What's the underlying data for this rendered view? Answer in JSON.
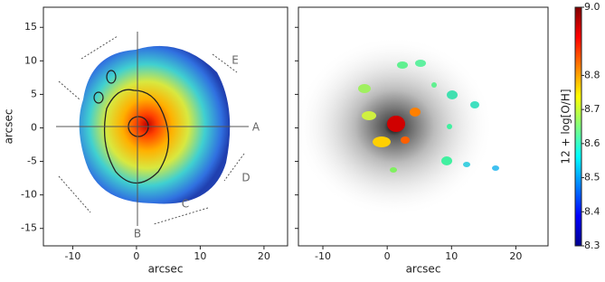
{
  "chart_data": [
    {
      "type": "map",
      "xlabel": "arcsec",
      "ylabel": "arcsec",
      "xlim": [
        -14.6,
        23.7
      ],
      "ylim": [
        -17.6,
        18
      ],
      "xticks": [
        -10,
        0,
        10,
        20
      ],
      "yticks": [
        -15,
        -10,
        -5,
        0,
        5,
        10,
        15
      ],
      "annotations": [
        "A",
        "B",
        "C",
        "D",
        "E"
      ]
    },
    {
      "type": "map",
      "xlabel": "arcsec",
      "xlim": [
        -13.8,
        25
      ],
      "ylim": [
        -17.6,
        18
      ],
      "xticks": [
        -10,
        0,
        10,
        20
      ],
      "yticks": [
        -15,
        -10,
        -5,
        0,
        5,
        10,
        15
      ]
    },
    {
      "type": "colorbar",
      "label": "12 + log[O/H]",
      "lim": [
        8.3,
        9.0
      ],
      "ticks": [
        8.3,
        8.4,
        8.5,
        8.6,
        8.7,
        8.8,
        {
          "value": 9,
          "label": "9.0"
        }
      ]
    }
  ]
}
